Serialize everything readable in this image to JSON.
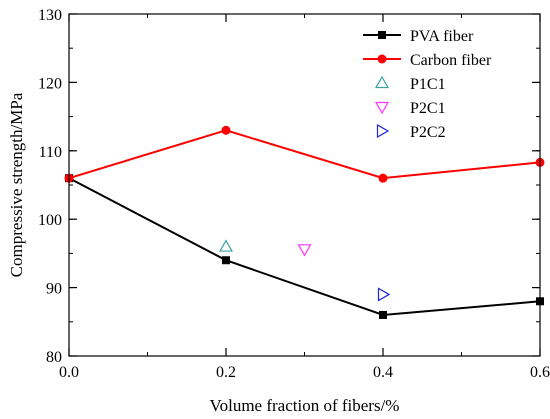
{
  "chart_data": {
    "type": "line",
    "title": "",
    "xlabel": "Volume fraction of fibers/%",
    "ylabel": "Compressive strength/MPa",
    "xlim": [
      0.0,
      0.6
    ],
    "ylim": [
      80,
      130
    ],
    "x_ticks": [
      "0.0",
      "0.2",
      "0.4",
      "0.6"
    ],
    "y_ticks": [
      "80",
      "90",
      "100",
      "110",
      "120",
      "130"
    ],
    "x_minor_step": 0.1,
    "y_minor_step": 5,
    "grid": false,
    "legend_position": "top-right",
    "series": [
      {
        "name": "PVA fiber",
        "color": "#000000",
        "marker": "filled-square",
        "line": true,
        "points": [
          [
            0.0,
            106
          ],
          [
            0.2,
            94
          ],
          [
            0.4,
            86
          ],
          [
            0.6,
            88
          ]
        ]
      },
      {
        "name": "Carbon fiber",
        "color": "#ff0000",
        "marker": "filled-circle",
        "line": true,
        "points": [
          [
            0.0,
            106
          ],
          [
            0.2,
            113
          ],
          [
            0.4,
            106
          ],
          [
            0.6,
            108.3
          ]
        ]
      },
      {
        "name": "P1C1",
        "color": "#3aa3a3",
        "marker": "open-triangle-up",
        "line": false,
        "points": [
          [
            0.2,
            96
          ]
        ]
      },
      {
        "name": "P2C1",
        "color": "#ff33ff",
        "marker": "open-triangle-down",
        "line": false,
        "points": [
          [
            0.3,
            95.6
          ]
        ]
      },
      {
        "name": "P2C2",
        "color": "#2222dd",
        "marker": "open-triangle-right",
        "line": false,
        "points": [
          [
            0.4,
            89
          ]
        ]
      }
    ]
  }
}
